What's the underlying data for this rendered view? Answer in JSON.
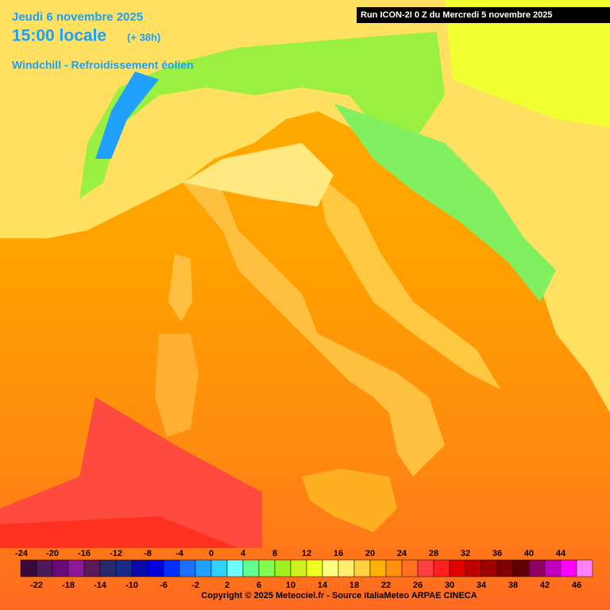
{
  "header": {
    "date": "Jeudi 6 novembre 2025",
    "time": "15:00 locale",
    "lead": "(+ 38h)",
    "parameter": "Windchill - Refroidissement éolien",
    "run": "Run ICON-2I 0 Z du Mercredi 5 novembre 2025"
  },
  "legend": {
    "ticks": [
      -24,
      -22,
      -20,
      -18,
      -16,
      -14,
      -12,
      -10,
      -8,
      -6,
      -4,
      -2,
      0,
      2,
      4,
      6,
      8,
      10,
      12,
      14,
      16,
      18,
      20,
      22,
      24,
      26,
      28,
      30,
      32,
      34,
      36,
      38,
      40,
      42,
      44,
      46
    ],
    "colors": [
      "#3a0a3a",
      "#4a1a5a",
      "#6a0a7a",
      "#8a1a9a",
      "#5a1a5a",
      "#2a2a6a",
      "#1a2a8a",
      "#0a0aaa",
      "#0000dd",
      "#0030ff",
      "#1a70ff",
      "#20a0ff",
      "#30d0ff",
      "#70ffff",
      "#60ff90",
      "#80ff50",
      "#a0f020",
      "#d0f020",
      "#f0ff20",
      "#ffff80",
      "#ffee70",
      "#ffd040",
      "#ffb000",
      "#ff9010",
      "#ff7020",
      "#ff4040",
      "#ff2020",
      "#e00000",
      "#c00000",
      "#a00000",
      "#800000",
      "#600000",
      "#900060",
      "#c000c0",
      "#ff00ff",
      "#ff80ff"
    ]
  },
  "footer": {
    "copyright": "Copyright © 2025 Meteociel.fr - Source italiaMeteo ARPAE CINECA"
  }
}
